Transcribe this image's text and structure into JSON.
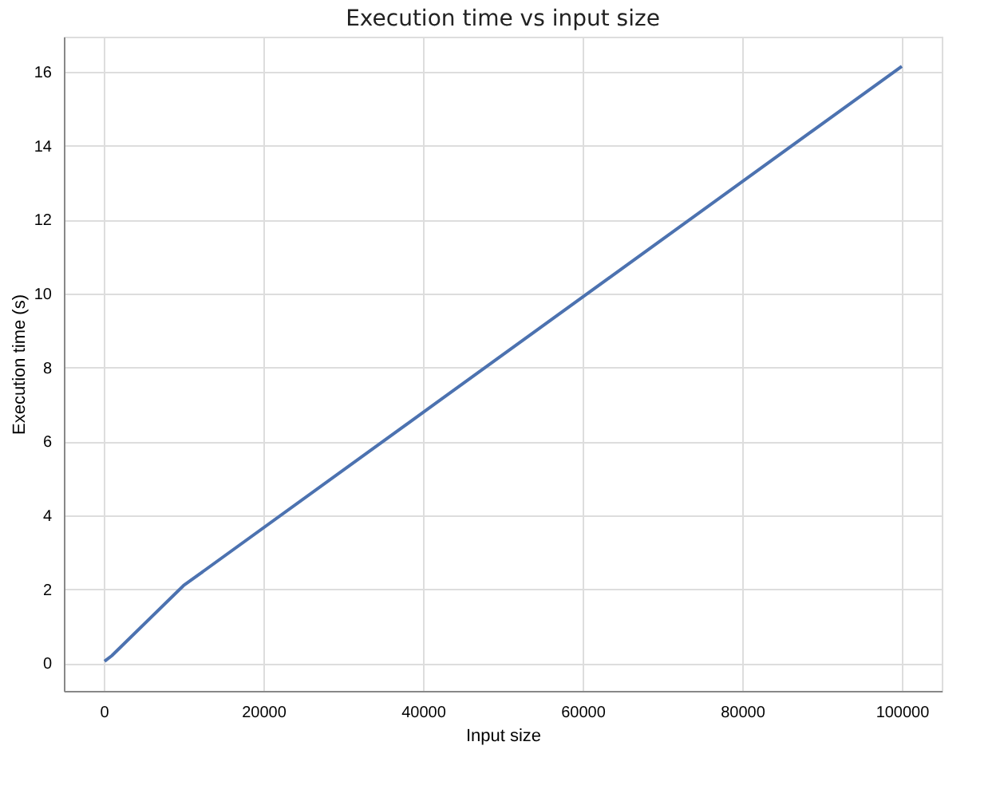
{
  "chart_data": {
    "type": "line",
    "title": "Execution time vs input size",
    "xlabel": "Input size",
    "ylabel": "Execution time (s)",
    "x": [
      100,
      1000,
      10000,
      100000
    ],
    "series": [
      {
        "color": "#4c72b0",
        "values": [
          0.05,
          0.2,
          2.1,
          16.15
        ]
      }
    ],
    "xlim": [
      -5000,
      105000
    ],
    "xticks": [
      0,
      20000,
      40000,
      60000,
      80000,
      100000
    ],
    "ylim": [
      -0.75,
      16.95
    ],
    "yticks": [
      0,
      2,
      4,
      6,
      8,
      10,
      12,
      14,
      16
    ],
    "grid": true,
    "marker": "none",
    "line_style": "solid"
  }
}
